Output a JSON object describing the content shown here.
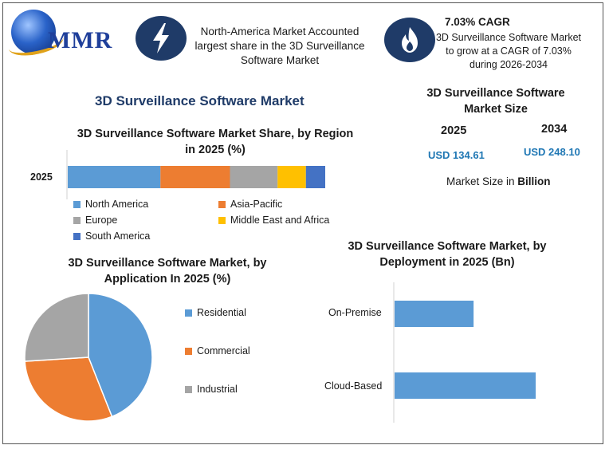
{
  "brand": {
    "name": "MMR"
  },
  "info1": {
    "icon": "lightning-icon",
    "text": "North-America Market Accounted largest share in the 3D Surveillance Software Market"
  },
  "info2": {
    "icon": "flame-icon",
    "title": "7.03% CAGR",
    "text": "3D Surveillance Software Market to grow at a CAGR of 7.03% during 2026-2034"
  },
  "main_title": "3D Surveillance Software Market",
  "market_size": {
    "title": "3D Surveillance Software Market Size",
    "year1": "2025",
    "value1": "USD 134.61",
    "year2": "2034",
    "value2": "USD 248.10",
    "note_prefix": "Market Size in ",
    "note_bold": "Billion"
  },
  "colors": {
    "north_america": "#5b9bd5",
    "asia_pacific": "#ed7d31",
    "europe": "#a5a5a5",
    "mea": "#ffc000",
    "south_america": "#4472c4",
    "bar": "#5b9bd5"
  },
  "chart_data": [
    {
      "type": "bar",
      "orientation": "horizontal-stacked",
      "title": "3D Surveillance Software Market Share, by Region in 2025 (%)",
      "categories": [
        "2025"
      ],
      "series": [
        {
          "name": "North America",
          "values": [
            36
          ]
        },
        {
          "name": "Asia-Pacific",
          "values": [
            27
          ]
        },
        {
          "name": "Europe",
          "values": [
            18.5
          ]
        },
        {
          "name": "Middle East and Africa",
          "values": [
            11
          ]
        },
        {
          "name": "South America",
          "values": [
            7.5
          ]
        }
      ],
      "legend": "bottom"
    },
    {
      "type": "pie",
      "title": "3D Surveillance Software Market, by Application In 2025 (%)",
      "labels": [
        "Residential",
        "Commercial",
        "Industrial"
      ],
      "values": [
        44,
        30,
        26
      ],
      "colors": [
        "#5b9bd5",
        "#ed7d31",
        "#a5a5a5"
      ],
      "legend": "right"
    },
    {
      "type": "bar",
      "orientation": "horizontal",
      "title": "3D Surveillance Software Market, by Deployment in 2025 (Bn)",
      "categories": [
        "On-Premise",
        "Cloud-Based"
      ],
      "values": [
        56,
        100
      ],
      "xlim": [
        0,
        100
      ]
    }
  ]
}
